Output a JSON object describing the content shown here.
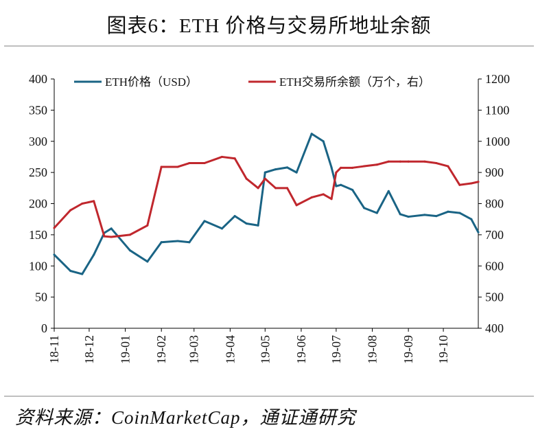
{
  "title": "图表6：ETH 价格与交易所地址余额",
  "source": "资料来源：CoinMarketCap，通证通研究",
  "colors": {
    "price": "#1a6485",
    "balance": "#c0272d",
    "axis": "#000000"
  },
  "chart_data": {
    "type": "line",
    "x_tick_labels": [
      "18-11",
      "18-12",
      "19-01",
      "19-02",
      "19-03",
      "19-04",
      "19-05",
      "19-06",
      "19-07",
      "19-08",
      "19-09",
      "19-10"
    ],
    "x": [
      "2018-11-01",
      "2018-11-15",
      "2018-11-25",
      "2018-12-05",
      "2018-12-14",
      "2018-12-20",
      "2019-01-05",
      "2019-01-20",
      "2019-02-01",
      "2019-02-15",
      "2019-02-25",
      "2019-03-10",
      "2019-03-25",
      "2019-04-05",
      "2019-04-15",
      "2019-04-25",
      "2019-05-01",
      "2019-05-10",
      "2019-05-20",
      "2019-05-28",
      "2019-06-10",
      "2019-06-20",
      "2019-06-27",
      "2019-07-01",
      "2019-07-05",
      "2019-07-15",
      "2019-07-25",
      "2019-08-05",
      "2019-08-15",
      "2019-08-25",
      "2019-09-01",
      "2019-09-15",
      "2019-09-25",
      "2019-10-05",
      "2019-10-15",
      "2019-10-25",
      "2019-10-31"
    ],
    "series": [
      {
        "name": "ETH价格（USD）",
        "axis": "left",
        "values": [
          118,
          92,
          87,
          118,
          153,
          160,
          125,
          107,
          138,
          140,
          138,
          172,
          160,
          180,
          168,
          165,
          250,
          255,
          258,
          250,
          312,
          300,
          258,
          228,
          230,
          222,
          193,
          185,
          220,
          183,
          179,
          182,
          180,
          187,
          185,
          175,
          154
        ]
      },
      {
        "name": "ETH交易所余额（万个，右）",
        "axis": "right",
        "values": [
          722,
          779,
          800,
          808,
          695,
          693,
          700,
          730,
          918,
          918,
          930,
          930,
          950,
          945,
          880,
          850,
          880,
          850,
          850,
          795,
          820,
          830,
          815,
          900,
          915,
          915,
          920,
          925,
          935,
          935,
          935,
          935,
          930,
          920,
          860,
          865,
          870
        ]
      }
    ],
    "y_left": {
      "ticks": [
        0,
        50,
        100,
        150,
        200,
        250,
        300,
        350,
        400
      ],
      "lim": [
        0,
        400
      ]
    },
    "y_right": {
      "ticks": [
        400,
        500,
        600,
        700,
        800,
        900,
        1000,
        1100,
        1200
      ],
      "lim": [
        400,
        1200
      ]
    },
    "legend_placement": "top",
    "grid": false
  }
}
